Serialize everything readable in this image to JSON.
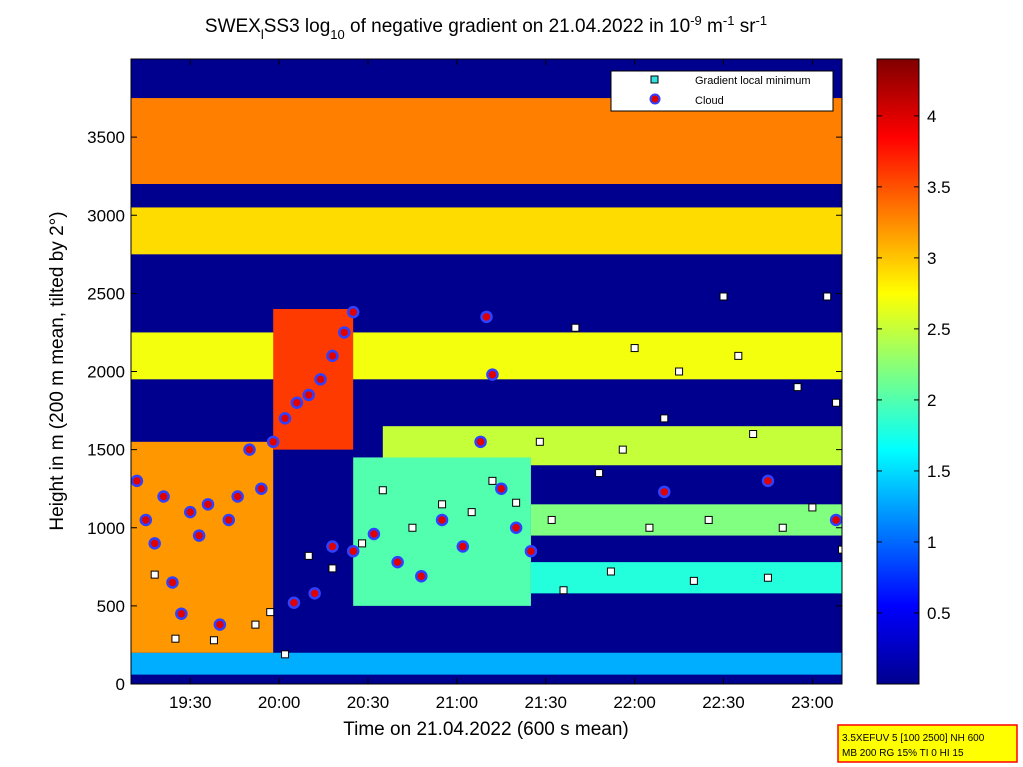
{
  "chart_data": {
    "type": "heatmap",
    "title": {
      "prefix": "SWEX",
      "sub1": "l",
      "mid": "SS3 log",
      "sub2": "10",
      "mid2": " of negative gradient on 21.04.2022 in 10",
      "sup1": "-9",
      "mid3": " m",
      "sup2": "-1",
      "mid4": " sr",
      "sup3": "-1"
    },
    "xlabel": "Time on 21.04.2022 (600 s mean)",
    "ylabel": "Height in m (200 m mean, tilted by 2°)",
    "x_axis": {
      "range": [
        "19:10",
        "23:10"
      ],
      "ticks": [
        "19:30",
        "20:00",
        "20:30",
        "21:00",
        "21:30",
        "22:00",
        "22:30",
        "23:00"
      ]
    },
    "y_axis": {
      "range": [
        0,
        4000
      ],
      "ticks": [
        0,
        500,
        1000,
        1500,
        2000,
        2500,
        3000,
        3500
      ]
    },
    "colorbar": {
      "colormap": "jet",
      "range": [
        0,
        4.4
      ],
      "ticks": [
        "0.5",
        "1",
        "1.5",
        "2",
        "2.5",
        "3",
        "3.5",
        "4"
      ]
    },
    "legend": {
      "placement": "top-right",
      "entries": [
        {
          "name": "Gradient local minimum",
          "marker": "square",
          "color": "#33e0e0"
        },
        {
          "name": "Cloud",
          "marker": "circle",
          "color": "#e00000",
          "edge": "#3040ff"
        }
      ]
    },
    "bands": [
      {
        "time": [
          "19:10",
          "23:10"
        ],
        "height": [
          3200,
          3750
        ],
        "level": 3.3
      },
      {
        "time": [
          "19:10",
          "23:10"
        ],
        "height": [
          2750,
          3050
        ],
        "level": 2.9
      },
      {
        "time": [
          "19:10",
          "23:10"
        ],
        "height": [
          1950,
          2250
        ],
        "level": 2.7
      },
      {
        "time": [
          "20:35",
          "23:10"
        ],
        "height": [
          1400,
          1650
        ],
        "level": 2.5
      },
      {
        "time": [
          "21:25",
          "23:10"
        ],
        "height": [
          950,
          1150
        ],
        "level": 2.2
      },
      {
        "time": [
          "21:25",
          "23:10"
        ],
        "height": [
          580,
          780
        ],
        "level": 1.8
      },
      {
        "time": [
          "19:10",
          "23:10"
        ],
        "height": [
          60,
          200
        ],
        "level": 1.3
      },
      {
        "time": [
          "19:10",
          "19:58"
        ],
        "height": [
          200,
          1550
        ],
        "level": 3.2
      },
      {
        "time": [
          "19:58",
          "20:25"
        ],
        "height": [
          1500,
          2400
        ],
        "level": 3.6
      },
      {
        "time": [
          "20:25",
          "21:25"
        ],
        "height": [
          500,
          1450
        ],
        "level": 2.0
      }
    ],
    "gradient_minima": [
      {
        "time": "19:18",
        "height": 700
      },
      {
        "time": "19:25",
        "height": 290
      },
      {
        "time": "19:38",
        "height": 280
      },
      {
        "time": "19:52",
        "height": 380
      },
      {
        "time": "19:57",
        "height": 460
      },
      {
        "time": "20:02",
        "height": 190
      },
      {
        "time": "20:10",
        "height": 820
      },
      {
        "time": "20:18",
        "height": 740
      },
      {
        "time": "20:28",
        "height": 900
      },
      {
        "time": "20:35",
        "height": 1240
      },
      {
        "time": "20:45",
        "height": 1000
      },
      {
        "time": "20:55",
        "height": 1150
      },
      {
        "time": "21:05",
        "height": 1100
      },
      {
        "time": "21:12",
        "height": 1300
      },
      {
        "time": "21:20",
        "height": 1160
      },
      {
        "time": "21:28",
        "height": 1550
      },
      {
        "time": "21:32",
        "height": 1050
      },
      {
        "time": "21:36",
        "height": 600
      },
      {
        "time": "21:40",
        "height": 2280
      },
      {
        "time": "21:48",
        "height": 1350
      },
      {
        "time": "21:52",
        "height": 720
      },
      {
        "time": "21:56",
        "height": 1500
      },
      {
        "time": "22:00",
        "height": 2150
      },
      {
        "time": "22:05",
        "height": 1000
      },
      {
        "time": "22:10",
        "height": 1700
      },
      {
        "time": "22:15",
        "height": 2000
      },
      {
        "time": "22:20",
        "height": 660
      },
      {
        "time": "22:25",
        "height": 1050
      },
      {
        "time": "22:30",
        "height": 2480
      },
      {
        "time": "22:35",
        "height": 2100
      },
      {
        "time": "22:40",
        "height": 1600
      },
      {
        "time": "22:45",
        "height": 680
      },
      {
        "time": "22:50",
        "height": 1000
      },
      {
        "time": "22:55",
        "height": 1900
      },
      {
        "time": "23:00",
        "height": 1130
      },
      {
        "time": "23:05",
        "height": 2480
      },
      {
        "time": "23:08",
        "height": 1800
      },
      {
        "time": "23:10",
        "height": 860
      }
    ],
    "clouds": [
      {
        "time": "19:12",
        "height": 1300
      },
      {
        "time": "19:15",
        "height": 1050
      },
      {
        "time": "19:18",
        "height": 900
      },
      {
        "time": "19:21",
        "height": 1200
      },
      {
        "time": "19:24",
        "height": 650
      },
      {
        "time": "19:27",
        "height": 450
      },
      {
        "time": "19:30",
        "height": 1100
      },
      {
        "time": "19:33",
        "height": 950
      },
      {
        "time": "19:36",
        "height": 1150
      },
      {
        "time": "19:40",
        "height": 380
      },
      {
        "time": "19:43",
        "height": 1050
      },
      {
        "time": "19:46",
        "height": 1200
      },
      {
        "time": "19:50",
        "height": 1500
      },
      {
        "time": "19:54",
        "height": 1250
      },
      {
        "time": "19:58",
        "height": 1550
      },
      {
        "time": "20:02",
        "height": 1700
      },
      {
        "time": "20:06",
        "height": 1800
      },
      {
        "time": "20:10",
        "height": 1850
      },
      {
        "time": "20:14",
        "height": 1950
      },
      {
        "time": "20:18",
        "height": 2100
      },
      {
        "time": "20:22",
        "height": 2250
      },
      {
        "time": "20:25",
        "height": 2380
      },
      {
        "time": "20:05",
        "height": 520
      },
      {
        "time": "20:12",
        "height": 580
      },
      {
        "time": "20:18",
        "height": 880
      },
      {
        "time": "20:25",
        "height": 850
      },
      {
        "time": "20:32",
        "height": 960
      },
      {
        "time": "20:40",
        "height": 780
      },
      {
        "time": "20:48",
        "height": 690
      },
      {
        "time": "20:55",
        "height": 1050
      },
      {
        "time": "21:02",
        "height": 880
      },
      {
        "time": "21:08",
        "height": 1550
      },
      {
        "time": "21:10",
        "height": 2350
      },
      {
        "time": "21:12",
        "height": 1980
      },
      {
        "time": "21:15",
        "height": 1250
      },
      {
        "time": "21:20",
        "height": 1000
      },
      {
        "time": "21:25",
        "height": 850
      },
      {
        "time": "22:10",
        "height": 1230
      },
      {
        "time": "22:45",
        "height": 1300
      },
      {
        "time": "23:08",
        "height": 1050
      }
    ]
  },
  "info_box": {
    "line1": "3.5XEFUV 5 [100 2500] NH 600",
    "line2": "MB 200 RG 15% TI 0 HI 15",
    "background": "#ffff00",
    "border": "#ff0000"
  }
}
